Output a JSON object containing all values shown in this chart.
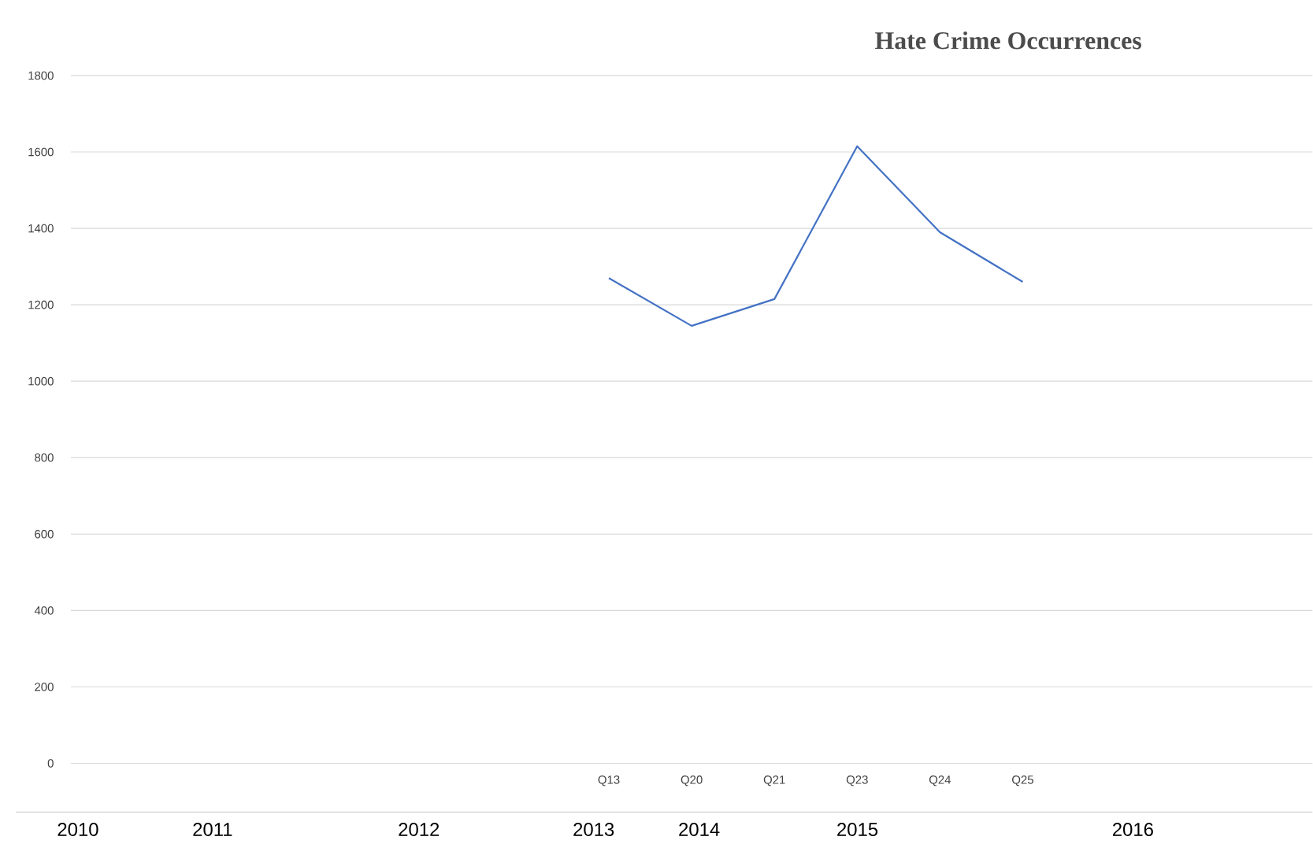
{
  "chart_data": {
    "type": "line",
    "title": "Hate Crime Occurrences",
    "categories": [
      null,
      null,
      null,
      null,
      null,
      null,
      "Q13",
      "Q20",
      "Q21",
      "Q23",
      "Q24",
      "Q25",
      null,
      null,
      null
    ],
    "series": [
      {
        "color": "#4472c4",
        "values": [
          null,
          null,
          null,
          null,
          null,
          null,
          1270,
          1145,
          1215,
          1615,
          1390,
          1260,
          null,
          null,
          null
        ]
      }
    ],
    "ylim": [
      0,
      1800
    ],
    "yticks": [
      0,
      200,
      400,
      600,
      800,
      1000,
      1200,
      1400,
      1600,
      1800
    ],
    "grid": "y",
    "annotations": [
      "2010",
      "2011",
      "2012",
      "2013",
      "2014",
      "2015",
      "2016"
    ]
  }
}
